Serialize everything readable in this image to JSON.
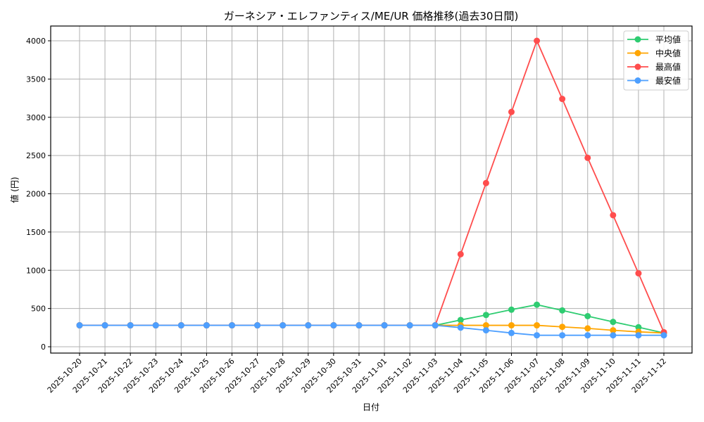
{
  "chart_data": {
    "type": "line",
    "title": "ガーネシア・エレファンティス/ME/UR 価格推移(過去30日間)",
    "xlabel": "日付",
    "ylabel": "値 (円)",
    "ylim": [
      0,
      4200
    ],
    "yticks": [
      0,
      500,
      1000,
      1500,
      2000,
      2500,
      3000,
      3500,
      4000
    ],
    "grid": true,
    "legend_position": "upper right",
    "categories": [
      "2025-10-20",
      "2025-10-21",
      "2025-10-22",
      "2025-10-23",
      "2025-10-24",
      "2025-10-25",
      "2025-10-26",
      "2025-10-27",
      "2025-10-28",
      "2025-10-29",
      "2025-10-30",
      "2025-10-31",
      "2025-11-01",
      "2025-11-02",
      "2025-11-03",
      "2025-11-04",
      "2025-11-05",
      "2025-11-06",
      "2025-11-07",
      "2025-11-08",
      "2025-11-09",
      "2025-11-10",
      "2025-11-11",
      "2025-11-12"
    ],
    "series": [
      {
        "name": "平均値",
        "color": "#2ecc71",
        "values": [
          280,
          280,
          280,
          280,
          280,
          280,
          280,
          280,
          280,
          280,
          280,
          280,
          280,
          280,
          280,
          350,
          415,
          485,
          550,
          475,
          400,
          325,
          255,
          180
        ]
      },
      {
        "name": "中央値",
        "color": "#ffa500",
        "values": [
          280,
          280,
          280,
          280,
          280,
          280,
          280,
          280,
          280,
          280,
          280,
          280,
          280,
          280,
          280,
          280,
          280,
          280,
          280,
          260,
          240,
          215,
          195,
          180
        ]
      },
      {
        "name": "最高値",
        "color": "#ff4d4d",
        "values": [
          280,
          280,
          280,
          280,
          280,
          280,
          280,
          280,
          280,
          280,
          280,
          280,
          280,
          280,
          280,
          1210,
          2140,
          3070,
          4000,
          3240,
          2470,
          1720,
          960,
          190
        ]
      },
      {
        "name": "最安値",
        "color": "#4d9fff",
        "values": [
          280,
          280,
          280,
          280,
          280,
          280,
          280,
          280,
          280,
          280,
          280,
          280,
          280,
          280,
          280,
          250,
          215,
          180,
          150,
          150,
          150,
          150,
          150,
          150
        ]
      }
    ]
  }
}
